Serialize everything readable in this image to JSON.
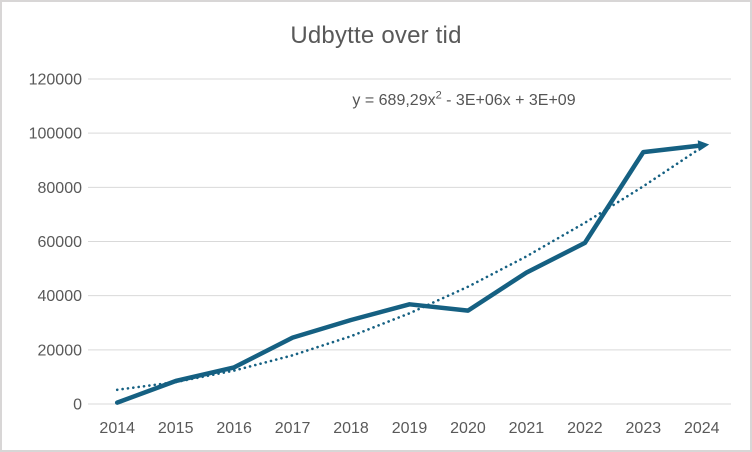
{
  "window": {
    "background": "#ffffff",
    "border_color": "#d8d6d6"
  },
  "chart_data": {
    "type": "line",
    "title": "Udbytte over tid",
    "categories": [
      "2014",
      "2015",
      "2016",
      "2017",
      "2018",
      "2019",
      "2020",
      "2021",
      "2022",
      "2023",
      "2024"
    ],
    "series": [
      {
        "name": "Udbytte",
        "color": "#156082",
        "values": [
          500,
          8500,
          13500,
          24500,
          31000,
          36800,
          34500,
          48500,
          59500,
          93000,
          95500
        ],
        "line_width": 4.5,
        "end_cap": "arrow"
      }
    ],
    "trendline": {
      "type": "polynomial",
      "order": 2,
      "equation": "y = 689,29x² - 3E+06x + 3E+09",
      "equation_parts": {
        "prefix": "y = 689,29x",
        "exponent": "2",
        "suffix": " - 3E+06x + 3E+09"
      },
      "style": "dotted",
      "color": "#156082",
      "values": [
        5250,
        8100,
        12350,
        18000,
        25050,
        33500,
        43300,
        54500,
        66900,
        80400,
        94800
      ]
    },
    "y_axis": {
      "min": 0,
      "max": 120000,
      "step": 20000,
      "tick_labels": [
        "0",
        "20000",
        "40000",
        "60000",
        "80000",
        "100000",
        "120000"
      ]
    },
    "x_axis": {
      "tick_labels": [
        "2014",
        "2015",
        "2016",
        "2017",
        "2018",
        "2019",
        "2020",
        "2021",
        "2022",
        "2023",
        "2024"
      ]
    },
    "gridlines": "horizontal",
    "gridline_color": "#d9d9d9",
    "text_color": "#595959",
    "legend": "none"
  }
}
